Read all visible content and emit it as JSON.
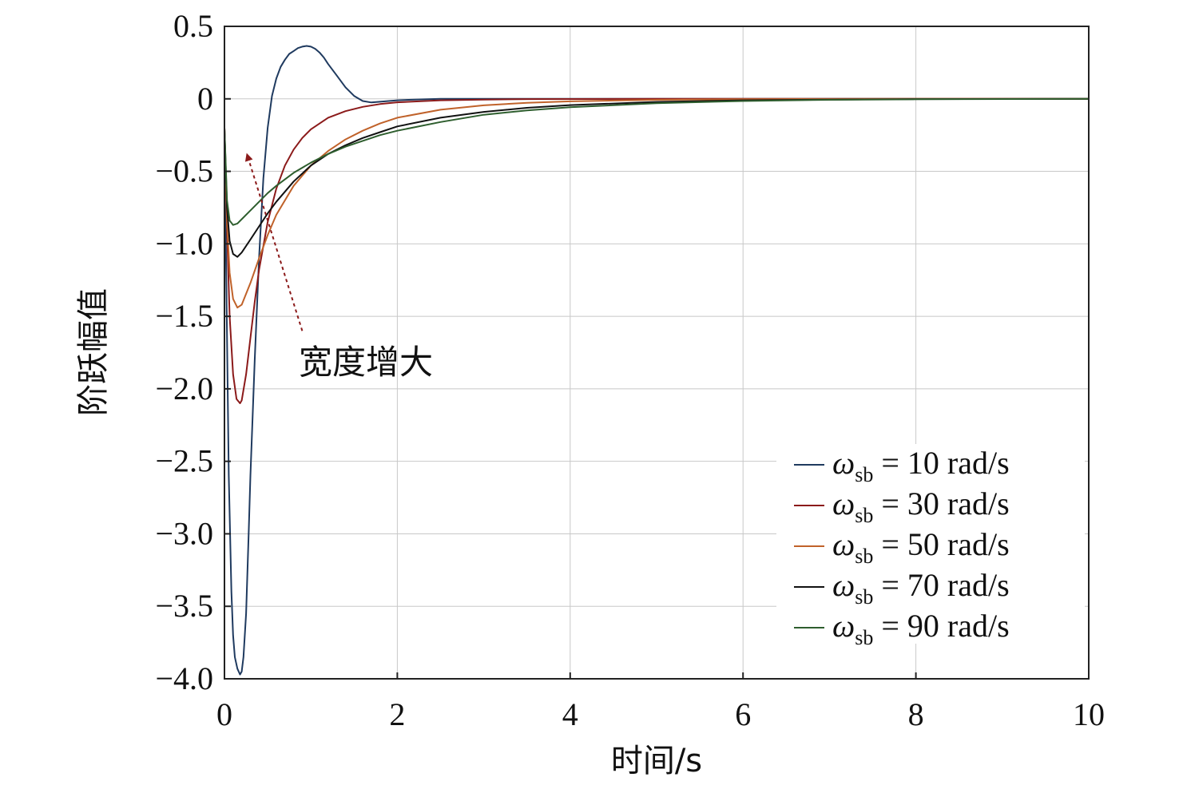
{
  "chart_data": {
    "type": "line",
    "xlabel": "时间/s",
    "ylabel": "阶跃幅值",
    "xlim": [
      0,
      10
    ],
    "ylim": [
      -4.0,
      0.5
    ],
    "xticks": [
      0,
      2,
      4,
      6,
      8,
      10
    ],
    "xtick_labels": [
      "0",
      "2",
      "4",
      "6",
      "8",
      "10"
    ],
    "yticks": [
      0.5,
      0,
      -0.5,
      -1.0,
      -1.5,
      -2.0,
      -2.5,
      -3.0,
      -3.5,
      -4.0
    ],
    "ytick_labels": [
      "0.5",
      "0",
      "−0.5",
      "−1.0",
      "−1.5",
      "−2.0",
      "−2.5",
      "−3.0",
      "−3.5",
      "−4.0"
    ],
    "grid": true,
    "legend_position": "bottom-right",
    "annotation": {
      "text": "宽度增大",
      "color": "#8b1a1a",
      "arrow_from": [
        0.9,
        -1.6
      ],
      "arrow_to": [
        0.27,
        -0.4
      ]
    },
    "series": [
      {
        "name_symbol": "ω",
        "name_subscript": "sb",
        "name_rest": " = 10 rad/s",
        "color": "#1f3a5f",
        "x": [
          0,
          0.02,
          0.05,
          0.08,
          0.1,
          0.12,
          0.15,
          0.18,
          0.2,
          0.22,
          0.25,
          0.28,
          0.3,
          0.35,
          0.4,
          0.45,
          0.5,
          0.55,
          0.6,
          0.65,
          0.7,
          0.75,
          0.8,
          0.85,
          0.9,
          0.95,
          1.0,
          1.05,
          1.1,
          1.15,
          1.2,
          1.3,
          1.4,
          1.5,
          1.6,
          1.7,
          1.8,
          2.0,
          2.2,
          2.5,
          3.0,
          4.0,
          6.0,
          8.0,
          10.0
        ],
        "y": [
          -0.2,
          -1.2,
          -2.6,
          -3.4,
          -3.7,
          -3.85,
          -3.93,
          -3.97,
          -3.95,
          -3.85,
          -3.55,
          -3.0,
          -2.6,
          -1.8,
          -1.1,
          -0.55,
          -0.2,
          0.02,
          0.14,
          0.22,
          0.27,
          0.31,
          0.33,
          0.35,
          0.36,
          0.365,
          0.36,
          0.345,
          0.32,
          0.285,
          0.24,
          0.16,
          0.08,
          0.02,
          -0.015,
          -0.025,
          -0.02,
          -0.01,
          -0.005,
          0.0,
          0.0,
          0.0,
          0.0,
          0.0,
          0.0
        ]
      },
      {
        "name_symbol": "ω",
        "name_subscript": "sb",
        "name_rest": " = 30 rad/s",
        "color": "#8b1a1a",
        "x": [
          0,
          0.03,
          0.06,
          0.1,
          0.14,
          0.18,
          0.2,
          0.25,
          0.3,
          0.35,
          0.4,
          0.5,
          0.6,
          0.7,
          0.8,
          0.9,
          1.0,
          1.2,
          1.4,
          1.6,
          1.8,
          2.0,
          2.5,
          3.0,
          3.5,
          4.0,
          5.0,
          6.0,
          8.0,
          10.0
        ],
        "y": [
          -0.2,
          -0.9,
          -1.5,
          -1.9,
          -2.07,
          -2.1,
          -2.08,
          -1.9,
          -1.65,
          -1.4,
          -1.18,
          -0.85,
          -0.62,
          -0.46,
          -0.35,
          -0.27,
          -0.21,
          -0.13,
          -0.085,
          -0.055,
          -0.036,
          -0.024,
          -0.01,
          -0.005,
          -0.002,
          -0.001,
          0.0,
          0.0,
          0.0,
          0.0
        ]
      },
      {
        "name_symbol": "ω",
        "name_subscript": "sb",
        "name_rest": " = 50 rad/s",
        "color": "#c0622a",
        "x": [
          0,
          0.03,
          0.06,
          0.1,
          0.15,
          0.2,
          0.3,
          0.4,
          0.5,
          0.6,
          0.8,
          1.0,
          1.2,
          1.4,
          1.6,
          1.8,
          2.0,
          2.5,
          3.0,
          3.5,
          4.0,
          5.0,
          6.0,
          7.0,
          8.0,
          10.0
        ],
        "y": [
          -0.2,
          -0.85,
          -1.2,
          -1.38,
          -1.44,
          -1.42,
          -1.27,
          -1.1,
          -0.94,
          -0.8,
          -0.6,
          -0.46,
          -0.36,
          -0.28,
          -0.22,
          -0.17,
          -0.13,
          -0.075,
          -0.045,
          -0.027,
          -0.017,
          -0.007,
          -0.003,
          -0.001,
          0.0,
          0.0
        ]
      },
      {
        "name_symbol": "ω",
        "name_subscript": "sb",
        "name_rest": " = 70 rad/s",
        "color": "#111111",
        "x": [
          0,
          0.03,
          0.06,
          0.1,
          0.15,
          0.2,
          0.3,
          0.4,
          0.5,
          0.6,
          0.8,
          1.0,
          1.2,
          1.4,
          1.6,
          1.8,
          2.0,
          2.5,
          3.0,
          3.5,
          4.0,
          5.0,
          6.0,
          7.0,
          8.0,
          10.0
        ],
        "y": [
          -0.2,
          -0.75,
          -0.98,
          -1.07,
          -1.09,
          -1.06,
          -0.97,
          -0.88,
          -0.79,
          -0.71,
          -0.57,
          -0.46,
          -0.38,
          -0.32,
          -0.27,
          -0.23,
          -0.19,
          -0.13,
          -0.09,
          -0.062,
          -0.043,
          -0.021,
          -0.01,
          -0.005,
          -0.002,
          0.0
        ]
      },
      {
        "name_symbol": "ω",
        "name_subscript": "sb",
        "name_rest": " = 90 rad/s",
        "color": "#2e5e2e",
        "x": [
          0,
          0.03,
          0.06,
          0.1,
          0.15,
          0.2,
          0.3,
          0.4,
          0.5,
          0.6,
          0.8,
          1.0,
          1.2,
          1.4,
          1.6,
          1.8,
          2.0,
          2.5,
          3.0,
          3.5,
          4.0,
          5.0,
          6.0,
          7.0,
          8.0,
          10.0
        ],
        "y": [
          -0.2,
          -0.7,
          -0.84,
          -0.87,
          -0.86,
          -0.83,
          -0.77,
          -0.71,
          -0.65,
          -0.6,
          -0.51,
          -0.44,
          -0.38,
          -0.33,
          -0.29,
          -0.25,
          -0.22,
          -0.16,
          -0.11,
          -0.08,
          -0.058,
          -0.03,
          -0.015,
          -0.007,
          -0.003,
          0.0
        ]
      }
    ]
  }
}
